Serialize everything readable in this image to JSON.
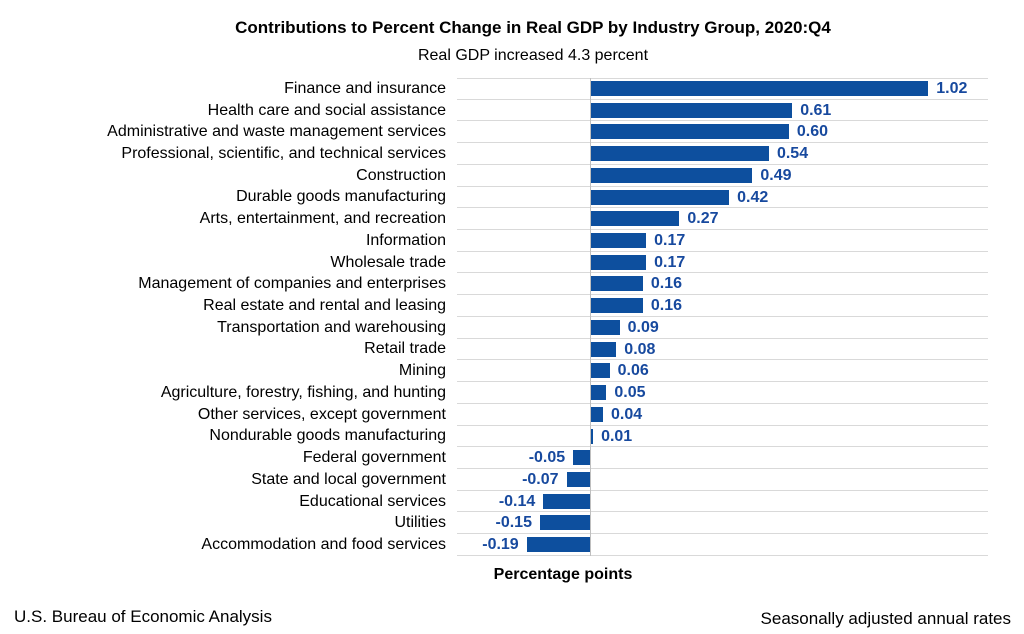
{
  "header": {
    "title": "Contributions to Percent Change in Real GDP by Industry Group, 2020:Q4",
    "subtitle": "Real GDP increased 4.3 percent"
  },
  "axis": {
    "xlabel": "Percentage points"
  },
  "footer": {
    "left": "U.S. Bureau of Economic Analysis",
    "right": "Seasonally adjusted annual rates"
  },
  "colors": {
    "bar": "#0d4f9e",
    "value_label": "#17499e",
    "gridline": "#d9d9d9",
    "zero_line": "#bfbfbf",
    "text": "#000000"
  },
  "chart_data": {
    "type": "bar",
    "orientation": "horizontal",
    "title": "Contributions to Percent Change in Real GDP by Industry Group, 2020:Q4",
    "subtitle": "Real GDP increased 4.3 percent",
    "xlabel": "Percentage points",
    "ylabel": "",
    "xlim": [
      -0.4,
      1.2
    ],
    "grid": "horizontal-row-separators",
    "legend": "none",
    "categories": [
      "Finance and insurance",
      "Health care and social assistance",
      "Administrative and waste management services",
      "Professional, scientific, and technical services",
      "Construction",
      "Durable goods manufacturing",
      "Arts, entertainment, and recreation",
      "Information",
      "Wholesale trade",
      "Management of companies and enterprises",
      "Real estate and rental and leasing",
      "Transportation and warehousing",
      "Retail trade",
      "Mining",
      "Agriculture, forestry, fishing, and hunting",
      "Other services, except government",
      "Nondurable goods manufacturing",
      "Federal government",
      "State and local government",
      "Educational services",
      "Utilities",
      "Accommodation and food services"
    ],
    "values": [
      1.02,
      0.61,
      0.6,
      0.54,
      0.49,
      0.42,
      0.27,
      0.17,
      0.17,
      0.16,
      0.16,
      0.09,
      0.08,
      0.06,
      0.05,
      0.04,
      0.01,
      -0.05,
      -0.07,
      -0.14,
      -0.15,
      -0.19
    ],
    "value_labels": [
      "1.02",
      "0.61",
      "0.60",
      "0.54",
      "0.49",
      "0.42",
      "0.27",
      "0.17",
      "0.17",
      "0.16",
      "0.16",
      "0.09",
      "0.08",
      "0.06",
      "0.05",
      "0.04",
      "0.01",
      "-0.05",
      "-0.07",
      "-0.14",
      "-0.15",
      "-0.19"
    ]
  }
}
